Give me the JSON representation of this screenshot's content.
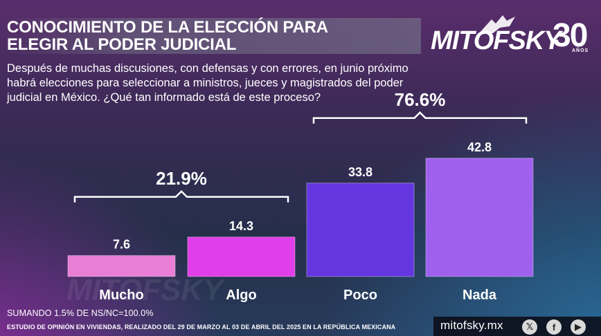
{
  "header": {
    "title_line1": "CONOCIMIENTO DE LA ELECCIÓN PARA",
    "title_line2": "ELEGIR AL PODER JUDICIAL",
    "logo_text": "MITOFSKY",
    "logo_years": "30",
    "logo_years_label": "AÑOS"
  },
  "question": {
    "line1": "Después de muchas discusiones, con defensas y con errores, en junio próximo",
    "line2": "habrá elecciones para seleccionar a ministros, jueces y magistrados del poder",
    "line3": "judicial en México. ¿Qué tan informado está de este proceso?"
  },
  "chart_data": {
    "type": "bar",
    "title": "",
    "categories": [
      "Mucho",
      "Algo",
      "Poco",
      "Nada"
    ],
    "values": [
      7.6,
      14.3,
      33.8,
      42.8
    ],
    "value_labels": [
      "7.6",
      "14.3",
      "33.8",
      "42.8"
    ],
    "colors": [
      "#e87ed6",
      "#e03ee8",
      "#6436e0",
      "#a060ee"
    ],
    "ylim": [
      0,
      45
    ],
    "xlabel": "",
    "ylabel": "",
    "grid": false,
    "groups": [
      {
        "label": "21.9%",
        "categories": [
          "Mucho",
          "Algo"
        ]
      },
      {
        "label": "76.6%",
        "categories": [
          "Poco",
          "Nada"
        ]
      }
    ]
  },
  "watermark": "MITOFSKY",
  "note": "SUMANDO 1.5% DE NS/NC=100.0%",
  "footer": {
    "study": "ESTUDIO DE OPINIÓN EN VIVIENDAS, REALIZADO DEL 29 DE MARZO AL 03 DE ABRIL DEL 2025 EN LA REPÚBLICA MEXICANA",
    "site": "mitofsky.mx",
    "social": [
      "x-icon",
      "facebook-icon",
      "youtube-icon"
    ]
  }
}
